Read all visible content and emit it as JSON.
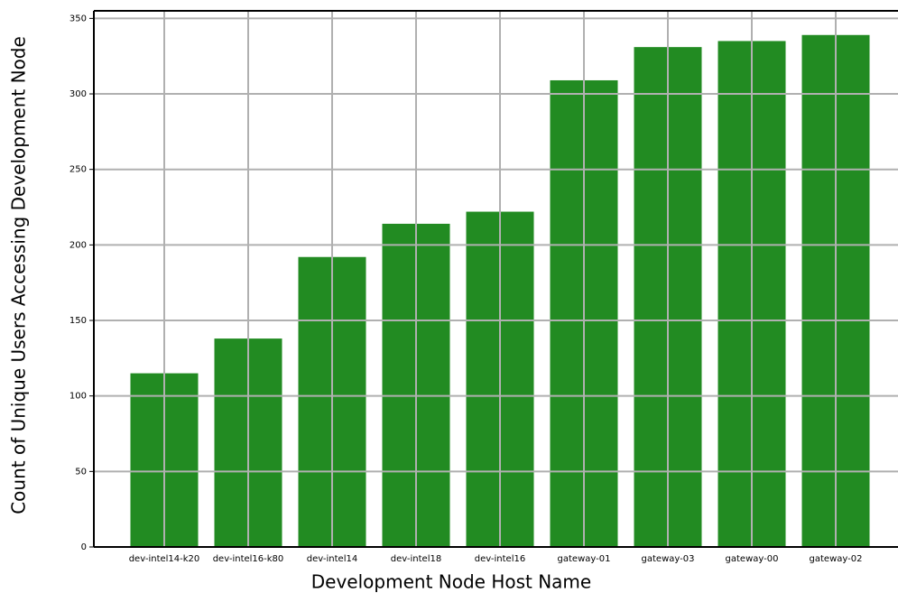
{
  "chart_data": {
    "type": "bar",
    "x_label": "Development Node Host Name",
    "y_label": "Count of Unique Users Accessing Development Node",
    "categories": [
      "dev-intel14-k20",
      "dev-intel16-k80",
      "dev-intel14",
      "dev-intel18",
      "dev-intel16",
      "gateway-01",
      "gateway-03",
      "gateway-00",
      "gateway-02"
    ],
    "values": [
      115,
      138,
      192,
      214,
      222,
      309,
      331,
      335,
      339
    ],
    "color": "#228b22",
    "ylim": [
      0,
      355
    ],
    "yticks": [
      0,
      50,
      100,
      150,
      200,
      250,
      300,
      350
    ],
    "grid": true
  }
}
